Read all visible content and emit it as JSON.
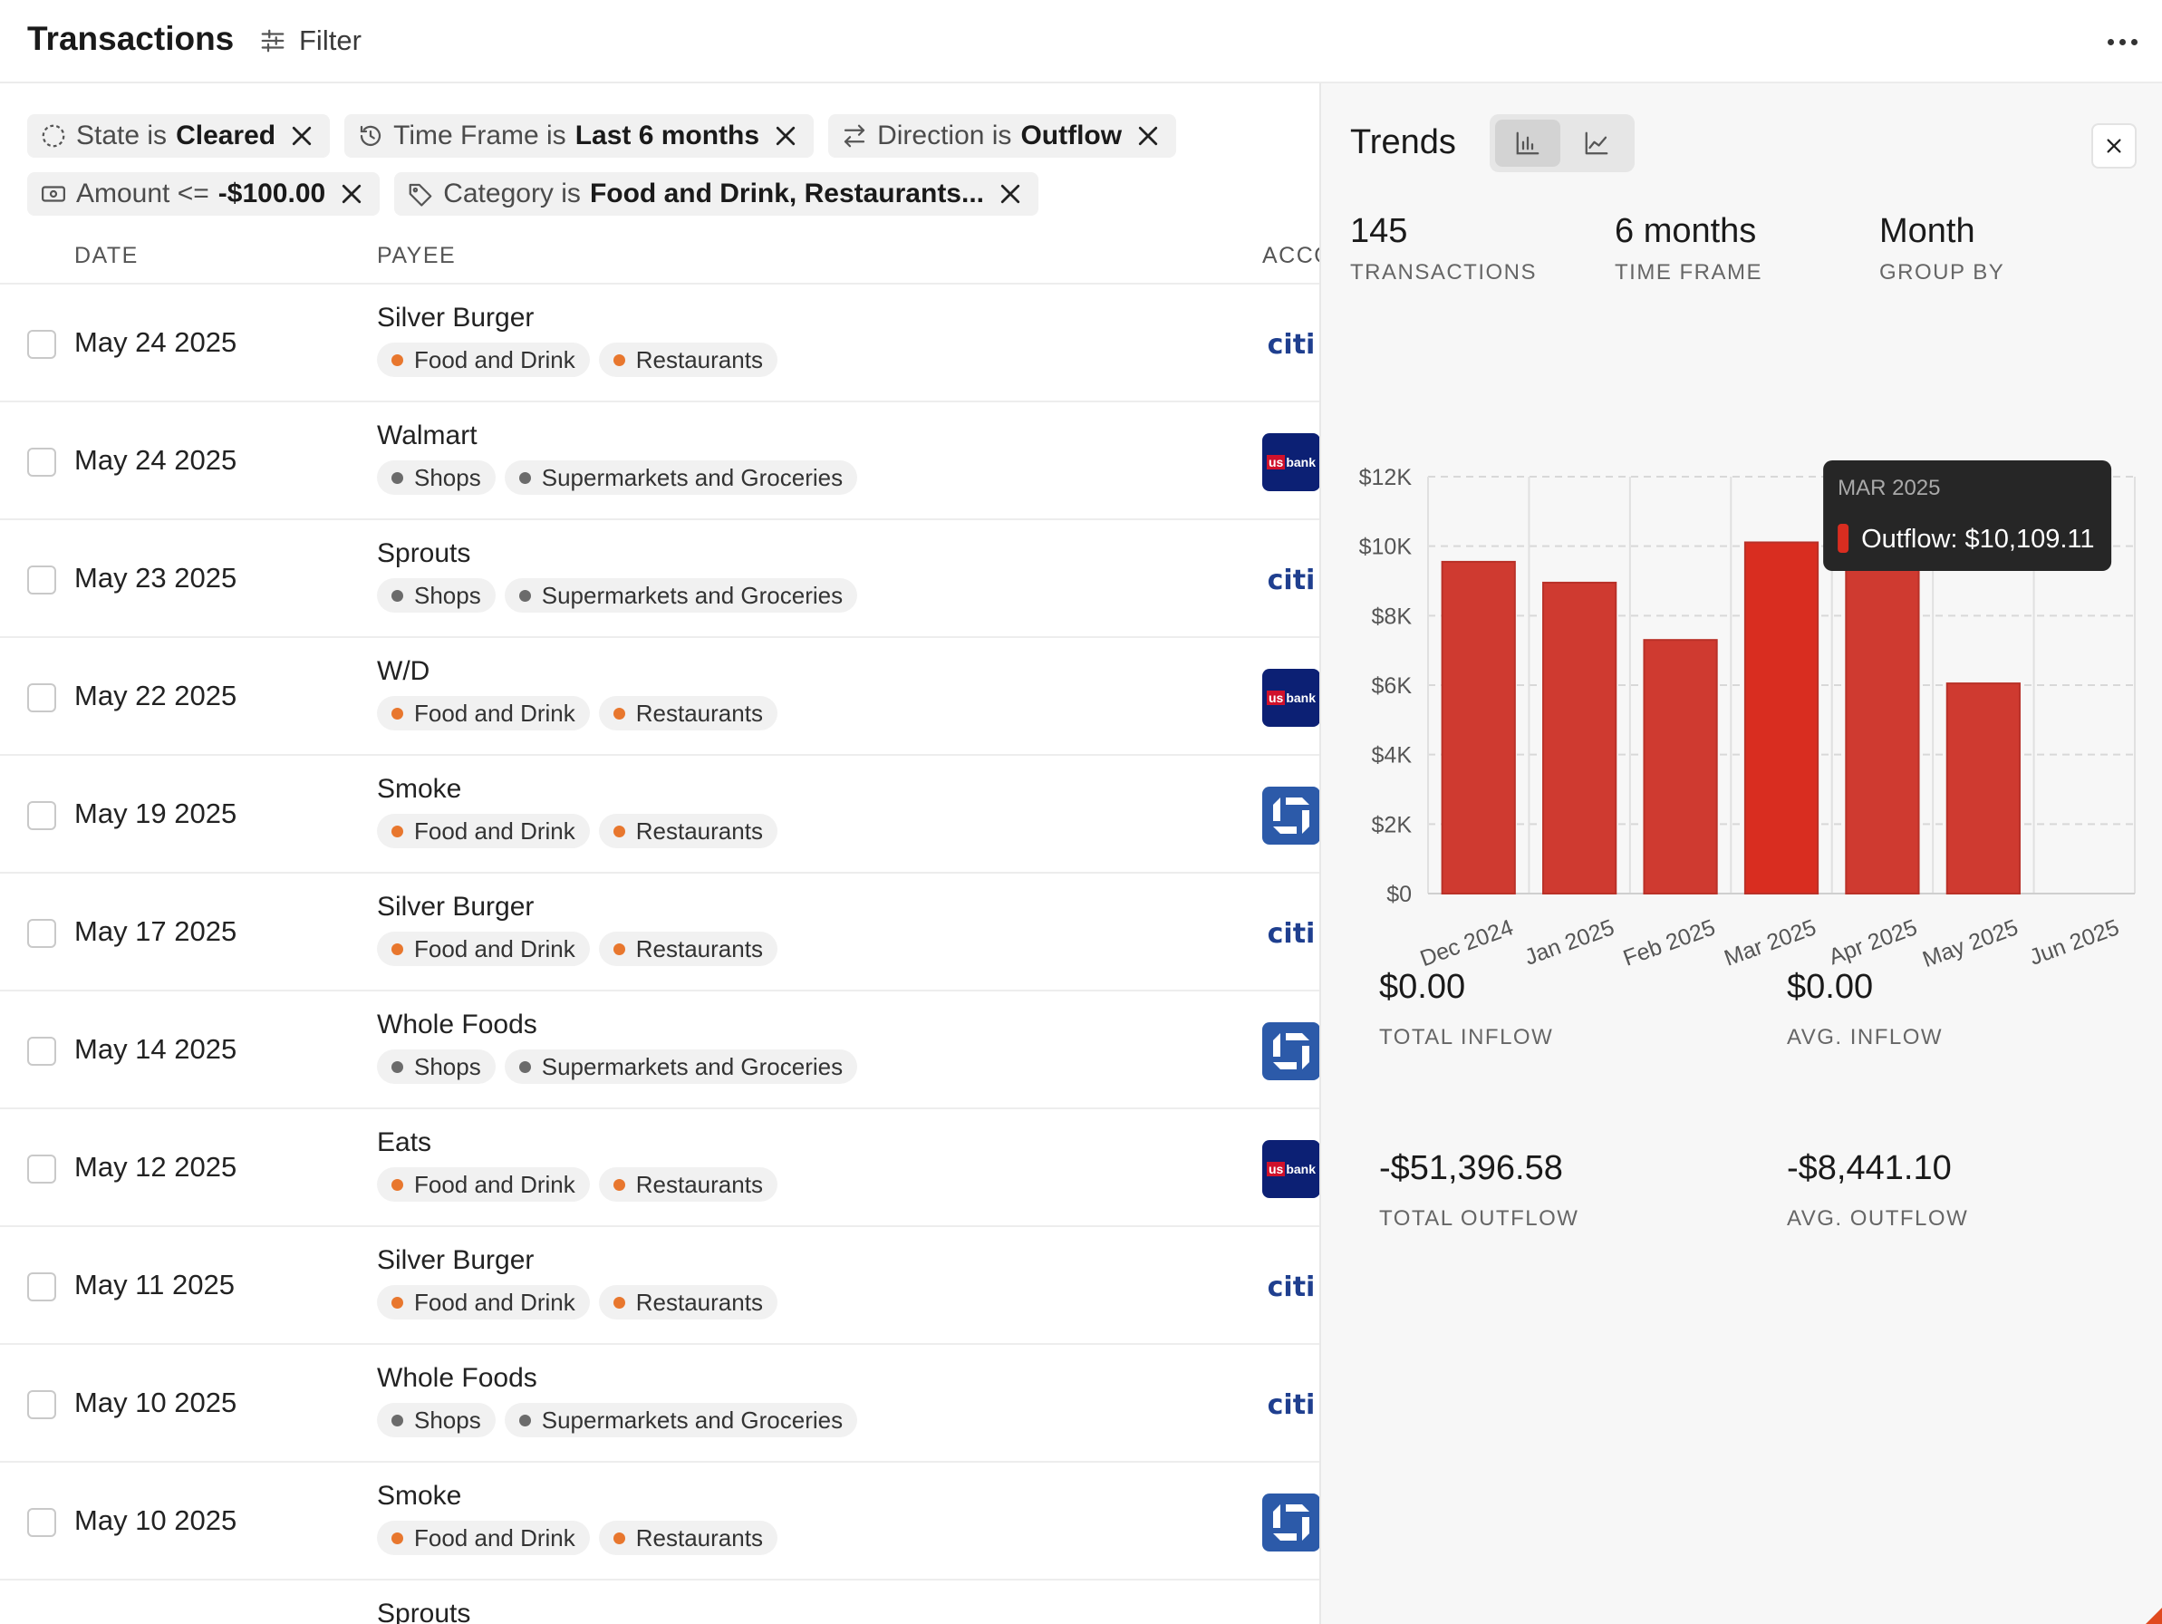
{
  "header": {
    "title": "Transactions",
    "filter_label": "Filter"
  },
  "filters": [
    {
      "icon": "dashed-circle-icon",
      "prefix": "State is",
      "value": "Cleared"
    },
    {
      "icon": "history-icon",
      "prefix": "Time Frame is",
      "value": "Last 6 months"
    },
    {
      "icon": "arrows-swap-icon",
      "prefix": "Direction is",
      "value": "Outflow"
    },
    {
      "icon": "banknote-icon",
      "prefix": "Amount <=",
      "value": "-$100.00"
    },
    {
      "icon": "tag-icon",
      "prefix": "Category is",
      "value": "Food and Drink, Restaurants..."
    }
  ],
  "table": {
    "columns": [
      "DATE",
      "PAYEE",
      "ACCOUNT"
    ],
    "rows": [
      {
        "date": "May 24 2025",
        "payee": "Silver Burger",
        "tags": [
          {
            "label": "Food and Drink",
            "color": "orange"
          },
          {
            "label": "Restaurants",
            "color": "orange"
          }
        ],
        "account": "citi"
      },
      {
        "date": "May 24 2025",
        "payee": "Walmart",
        "tags": [
          {
            "label": "Shops",
            "color": "gray"
          },
          {
            "label": "Supermarkets and Groceries",
            "color": "gray"
          }
        ],
        "account": "usbank"
      },
      {
        "date": "May 23 2025",
        "payee": "Sprouts",
        "tags": [
          {
            "label": "Shops",
            "color": "gray"
          },
          {
            "label": "Supermarkets and Groceries",
            "color": "gray"
          }
        ],
        "account": "citi"
      },
      {
        "date": "May 22 2025",
        "payee": "W/D",
        "tags": [
          {
            "label": "Food and Drink",
            "color": "orange"
          },
          {
            "label": "Restaurants",
            "color": "orange"
          }
        ],
        "account": "usbank"
      },
      {
        "date": "May 19 2025",
        "payee": "Smoke",
        "tags": [
          {
            "label": "Food and Drink",
            "color": "orange"
          },
          {
            "label": "Restaurants",
            "color": "orange"
          }
        ],
        "account": "chase"
      },
      {
        "date": "May 17 2025",
        "payee": "Silver Burger",
        "tags": [
          {
            "label": "Food and Drink",
            "color": "orange"
          },
          {
            "label": "Restaurants",
            "color": "orange"
          }
        ],
        "account": "citi"
      },
      {
        "date": "May 14 2025",
        "payee": "Whole Foods",
        "tags": [
          {
            "label": "Shops",
            "color": "gray"
          },
          {
            "label": "Supermarkets and Groceries",
            "color": "gray"
          }
        ],
        "account": "chase"
      },
      {
        "date": "May 12 2025",
        "payee": "Eats",
        "tags": [
          {
            "label": "Food and Drink",
            "color": "orange"
          },
          {
            "label": "Restaurants",
            "color": "orange"
          }
        ],
        "account": "usbank"
      },
      {
        "date": "May 11 2025",
        "payee": "Silver Burger",
        "tags": [
          {
            "label": "Food and Drink",
            "color": "orange"
          },
          {
            "label": "Restaurants",
            "color": "orange"
          }
        ],
        "account": "citi"
      },
      {
        "date": "May 10 2025",
        "payee": "Whole Foods",
        "tags": [
          {
            "label": "Shops",
            "color": "gray"
          },
          {
            "label": "Supermarkets and Groceries",
            "color": "gray"
          }
        ],
        "account": "citi"
      },
      {
        "date": "May 10 2025",
        "payee": "Smoke",
        "tags": [
          {
            "label": "Food and Drink",
            "color": "orange"
          },
          {
            "label": "Restaurants",
            "color": "orange"
          }
        ],
        "account": "chase"
      },
      {
        "date": "",
        "payee": "Sprouts",
        "tags": [],
        "account": ""
      }
    ]
  },
  "account_labels": {
    "citi": "citi",
    "usbank_us": "us",
    "usbank_bank": "bank"
  },
  "trends": {
    "title": "Trends",
    "stats": [
      {
        "value": "145",
        "label": "TRANSACTIONS"
      },
      {
        "value": "6 months",
        "label": "TIME FRAME"
      },
      {
        "value": "Month",
        "label": "GROUP BY"
      }
    ],
    "summary": [
      {
        "value": "$0.00",
        "label": "TOTAL INFLOW"
      },
      {
        "value": "$0.00",
        "label": "AVG. INFLOW"
      },
      {
        "value": "-$51,396.58",
        "label": "TOTAL OUTFLOW"
      },
      {
        "value": "-$8,441.10",
        "label": "AVG. OUTFLOW"
      }
    ],
    "tooltip": {
      "title": "MAR 2025",
      "text": "Outflow: $10,109.11"
    }
  },
  "colors": {
    "bar": "#cf3a30",
    "bar_highlight": "#d92d20",
    "accent_orange": "#e8772e"
  },
  "chart_data": {
    "type": "bar",
    "categories": [
      "Dec 2024",
      "Jan 2025",
      "Feb 2025",
      "Mar 2025",
      "Apr 2025",
      "May 2025",
      "Jun 2025"
    ],
    "series": [
      {
        "name": "Outflow",
        "values": [
          9550,
          8950,
          7300,
          10109.11,
          9400,
          6050,
          0
        ]
      }
    ],
    "yticks": [
      "$0",
      "$2K",
      "$4K",
      "$6K",
      "$8K",
      "$10K",
      "$12K"
    ],
    "ylim": [
      0,
      12000
    ],
    "highlight_index": 3,
    "grid": true
  }
}
